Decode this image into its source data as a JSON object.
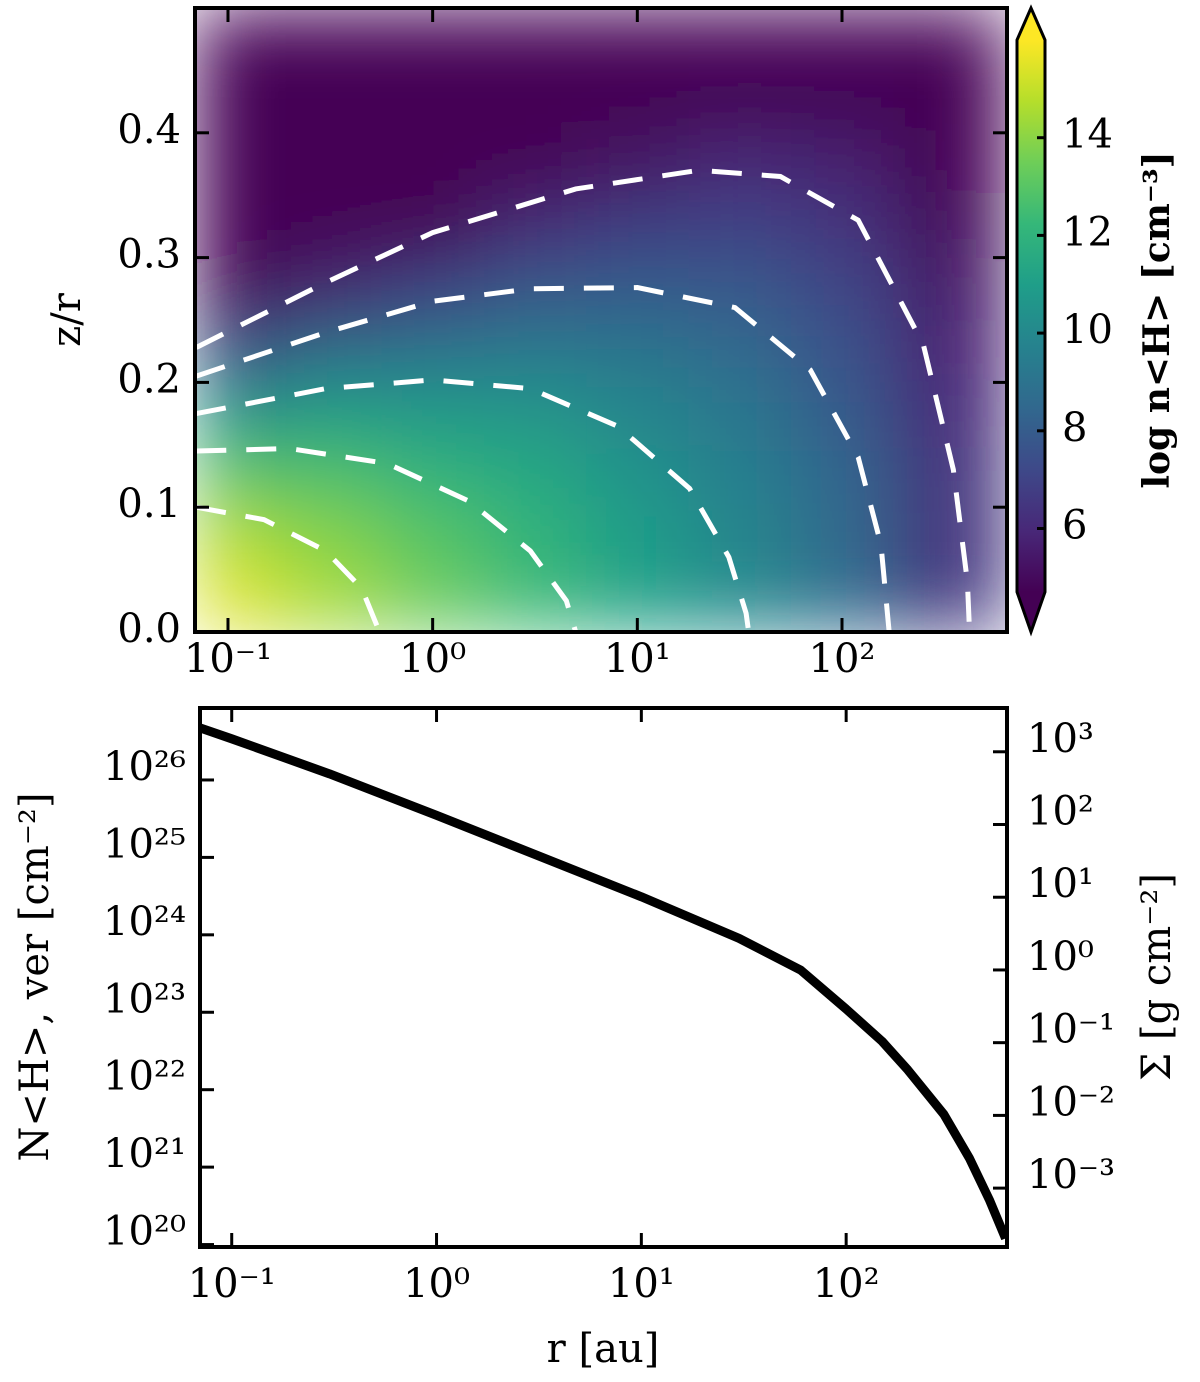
{
  "chart_data": [
    {
      "type": "heatmap",
      "ylabel": "z/r",
      "xscale": "log",
      "xlim": [
        0.069,
        640
      ],
      "ylim": [
        0,
        0.5
      ],
      "xticks": [
        {
          "value": 0.1,
          "label": "10⁻¹"
        },
        {
          "value": 1,
          "label": "10⁰"
        },
        {
          "value": 10,
          "label": "10¹"
        },
        {
          "value": 100,
          "label": "10²"
        }
      ],
      "yticks": [
        {
          "value": 0,
          "label": "0.0"
        },
        0.1,
        0.2,
        0.3,
        0.4
      ],
      "x": [
        0.1,
        0.316,
        1,
        3.16,
        10,
        31.6,
        100,
        316
      ],
      "y": [
        0.025,
        0.075,
        0.125,
        0.175,
        0.225,
        0.275,
        0.325,
        0.375,
        0.425,
        0.475
      ],
      "z": [
        [
          15.5,
          14.5,
          13.4,
          12.4,
          11.2,
          10.1,
          8.7,
          6.6
        ],
        [
          14.7,
          13.9,
          13.0,
          12.1,
          11.0,
          9.9,
          8.6,
          6.5
        ],
        [
          13.0,
          12.8,
          12.1,
          11.5,
          10.5,
          9.6,
          8.4,
          6.4
        ],
        [
          10.5,
          11.0,
          10.8,
          10.6,
          9.9,
          9.2,
          8.0,
          6.1
        ],
        [
          7.1,
          8.7,
          9.1,
          9.3,
          9.1,
          8.6,
          7.6,
          5.8
        ],
        [
          2.9,
          5.7,
          6.9,
          7.8,
          8.0,
          7.9,
          7.1,
          5.5
        ],
        [
          -2.1,
          2.2,
          4.3,
          6.0,
          6.8,
          7.0,
          6.4,
          5.0
        ],
        [
          -7.9,
          -1.9,
          1.3,
          3.9,
          5.3,
          6.0,
          5.7,
          4.5
        ],
        [
          -14.6,
          -6.6,
          -2.2,
          1.5,
          3.6,
          4.8,
          4.8,
          3.9
        ],
        [
          -22.2,
          -11.9,
          -6.1,
          -1.2,
          1.8,
          3.5,
          3.8,
          3.2
        ]
      ],
      "colormap": [
        "#440154",
        "#482878",
        "#3e4989",
        "#31688e",
        "#26828e",
        "#1f9e89",
        "#35b779",
        "#6ece58",
        "#b5de2b",
        "#fde725"
      ],
      "clim": [
        4.7,
        16
      ],
      "colorbar": {
        "label": "log n<H> [cm⁻³]",
        "ticks": [
          6,
          8,
          10,
          12,
          14
        ]
      },
      "contour_color": "#ffffff",
      "contours": [
        {
          "x": [
            0.07,
            0.15,
            0.3,
            0.45,
            0.55
          ],
          "y": [
            0.1,
            0.09,
            0.065,
            0.035,
            0.0
          ]
        },
        {
          "x": [
            0.07,
            0.2,
            0.6,
            1.5,
            3,
            4.5,
            5
          ],
          "y": [
            0.145,
            0.147,
            0.135,
            0.105,
            0.065,
            0.025,
            0.0
          ]
        },
        {
          "x": [
            0.07,
            0.3,
            1,
            3,
            8,
            18,
            28,
            34,
            35
          ],
          "y": [
            0.175,
            0.195,
            0.202,
            0.195,
            0.165,
            0.115,
            0.06,
            0.015,
            0.0
          ]
        },
        {
          "x": [
            0.07,
            0.3,
            1,
            3,
            10,
            30,
            70,
            120,
            155,
            170
          ],
          "y": [
            0.205,
            0.24,
            0.265,
            0.275,
            0.276,
            0.26,
            0.21,
            0.14,
            0.07,
            0.0
          ]
        },
        {
          "x": [
            0.07,
            0.3,
            1,
            5,
            20,
            50,
            120,
            250,
            350,
            410,
            420
          ],
          "y": [
            0.228,
            0.28,
            0.32,
            0.355,
            0.37,
            0.365,
            0.33,
            0.23,
            0.13,
            0.04,
            0.0
          ]
        }
      ]
    },
    {
      "type": "line",
      "xlabel": "r [au]",
      "ylabel": "N<H>, ver [cm⁻²]",
      "y2label": "Σ [g cm⁻²]",
      "xscale": "log",
      "yscale": "log",
      "y2scale": "log",
      "xlim": [
        0.07,
        610
      ],
      "ylim": [
        9.3e+19,
        8.5e+26
      ],
      "y2lim": [
        0.000155,
        4000
      ],
      "xticks": [
        {
          "value": 0.1,
          "label": "10⁻¹"
        },
        {
          "value": 1,
          "label": "10⁰"
        },
        {
          "value": 10,
          "label": "10¹"
        },
        {
          "value": 100,
          "label": "10²"
        }
      ],
      "yticks": [
        {
          "value": 1e+20,
          "label": "10²⁰"
        },
        {
          "value": 1e+21,
          "label": "10²¹"
        },
        {
          "value": 1e+22,
          "label": "10²²"
        },
        {
          "value": 1e+23,
          "label": "10²³"
        },
        {
          "value": 1e+24,
          "label": "10²⁴"
        },
        {
          "value": 1e+25,
          "label": "10²⁵"
        },
        {
          "value": 1e+26,
          "label": "10²⁶"
        }
      ],
      "y2ticks": [
        {
          "value": 0.001,
          "label": "10⁻³"
        },
        {
          "value": 0.01,
          "label": "10⁻²"
        },
        {
          "value": 0.1,
          "label": "10⁻¹"
        },
        {
          "value": 1,
          "label": "10⁰"
        },
        {
          "value": 10,
          "label": "10¹"
        },
        {
          "value": 100,
          "label": "10²"
        },
        {
          "value": 1000,
          "label": "10³"
        }
      ],
      "x": [
        0.07,
        0.1,
        0.3,
        1,
        3,
        10,
        30,
        60,
        100,
        150,
        200,
        300,
        400,
        500,
        600
      ],
      "series": [
        {
          "color": "#000000",
          "values": [
            4.7e+26,
            3.4e+26,
            1.2e+26,
            3.5e+25,
            1.1e+25,
            3.1e+24,
            9e+23,
            3.5e+23,
            1.1e+23,
            4.2e+22,
            1.8e+22,
            4.8e+21,
            1.3e+21,
            3.8e+20,
            1.2e+20
          ]
        }
      ]
    }
  ]
}
